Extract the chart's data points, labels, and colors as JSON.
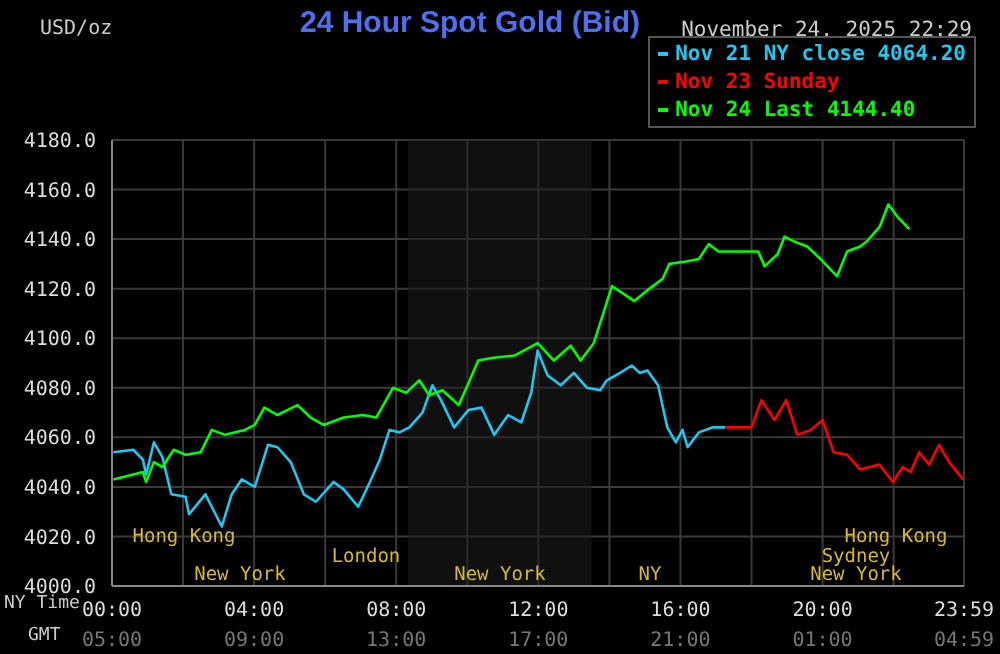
{
  "chart_data": {
    "type": "line",
    "title": "24 Hour Spot Gold (Bid)",
    "subtitle": "November 24, 2025 22:29",
    "ylabel": "USD/oz",
    "xlabel": "NY Time",
    "x2label": "GMT",
    "xlim": [
      0,
      23.98
    ],
    "xticks": [
      {
        "value": 0,
        "label": "00:00"
      },
      {
        "value": 2,
        "label": null
      },
      {
        "value": 4,
        "label": "04:00"
      },
      {
        "value": 6,
        "label": null
      },
      {
        "value": 8,
        "label": "08:00"
      },
      {
        "value": 10,
        "label": null
      },
      {
        "value": 12,
        "label": "12:00"
      },
      {
        "value": 14,
        "label": null
      },
      {
        "value": 16,
        "label": "16:00"
      },
      {
        "value": 18,
        "label": null
      },
      {
        "value": 20,
        "label": "20:00"
      },
      {
        "value": 22,
        "label": null
      },
      {
        "value": 23.98,
        "label": "23:59"
      }
    ],
    "x2lim": [
      "2025-11-24T05:00",
      "2025-11-25T04:59"
    ],
    "x2ticks": [
      {
        "value": "2025-11-24T05:00",
        "label": "05:00"
      },
      {
        "value": "2025-11-24T09:00",
        "label": "09:00"
      },
      {
        "value": "2025-11-24T13:00",
        "label": "13:00"
      },
      {
        "value": "2025-11-24T17:00",
        "label": "17:00"
      },
      {
        "value": "2025-11-24T21:00",
        "label": "21:00"
      },
      {
        "value": "2025-11-25T01:00",
        "label": "01:00"
      },
      {
        "value": "2025-11-25T04:59",
        "label": "04:59"
      }
    ],
    "ylim": [
      4000,
      4180
    ],
    "yticks": [
      {
        "value": 4000,
        "label": "4000.0"
      },
      {
        "value": 4020,
        "label": "4020.0"
      },
      {
        "value": 4040,
        "label": "4040.0"
      },
      {
        "value": 4060,
        "label": "4060.0"
      },
      {
        "value": 4080,
        "label": "4080.0"
      },
      {
        "value": 4100,
        "label": "4100.0"
      },
      {
        "value": 4120,
        "label": "4120.0"
      },
      {
        "value": 4140,
        "label": "4140.0"
      },
      {
        "value": 4160,
        "label": "4160.0"
      },
      {
        "value": 4180,
        "label": "4180.0"
      }
    ],
    "grid": true,
    "legend": "top right",
    "marker": "none",
    "line_style": "solid",
    "bands": [
      {
        "axis": "x",
        "from": 8.33,
        "to": 13.5,
        "color": "#1c1e1c"
      }
    ],
    "annotations": [
      "Hong Kong",
      "London",
      "New York",
      "New York",
      "NY",
      "Hong Kong",
      "Sydney",
      "New York"
    ],
    "series": [
      {
        "name": "Nov 21 NY close 4064.20",
        "color": "#1ec8f0",
        "x": [
          0.04,
          0.6,
          0.87,
          0.96,
          1.18,
          1.42,
          1.67,
          2.07,
          2.17,
          2.63,
          3.09,
          3.37,
          3.65,
          4.02,
          4.39,
          4.66,
          5.03,
          5.4,
          5.74,
          6.24,
          6.52,
          6.93,
          7.26,
          7.54,
          7.81,
          8.09,
          8.37,
          8.74,
          9.02,
          9.26,
          9.63,
          10.03,
          10.4,
          10.76,
          11.15,
          11.52,
          11.8,
          11.98,
          12.26,
          12.63,
          13.0,
          13.37,
          13.74,
          13.93,
          14.3,
          14.63,
          14.85,
          15.07,
          15.37,
          15.63,
          15.87,
          16.06,
          16.2,
          16.52,
          16.89,
          17.26
        ],
        "values": [
          4054,
          4055,
          4051,
          4045,
          4058,
          4052,
          4037,
          4036,
          4029,
          4037,
          4024,
          4037,
          4043,
          4040,
          4057,
          4056,
          4050,
          4037,
          4034,
          4042,
          4039,
          4032,
          4042,
          4051,
          4063,
          4062,
          4064,
          4070,
          4081,
          4075,
          4064,
          4071,
          4072,
          4061,
          4069,
          4066,
          4078,
          4095,
          4085,
          4081,
          4086,
          4080,
          4079,
          4083,
          4086,
          4089,
          4086,
          4087,
          4081,
          4064,
          4058,
          4063,
          4056,
          4062,
          4064,
          4064
        ]
      },
      {
        "name": "Nov 23 Sunday",
        "color": "#ff0000",
        "x": [
          17.26,
          18.0,
          18.28,
          18.65,
          18.98,
          19.29,
          19.67,
          20.0,
          20.31,
          20.69,
          21.06,
          21.6,
          21.98,
          22.26,
          22.48,
          22.72,
          23.0,
          23.28,
          23.56,
          23.96
        ],
        "values": [
          4064,
          4064,
          4075,
          4067,
          4075,
          4061,
          4063,
          4067,
          4054,
          4053,
          4047,
          4049,
          4042,
          4048,
          4046,
          4054,
          4049,
          4057,
          4050,
          4043
        ]
      },
      {
        "name": "Nov 24 Last 4144.40",
        "color": "#00ff00",
        "x": [
          0.04,
          0.6,
          0.87,
          0.96,
          1.18,
          1.42,
          1.74,
          2.07,
          2.5,
          2.81,
          3.18,
          3.74,
          4.02,
          4.29,
          4.66,
          5.22,
          5.59,
          5.96,
          6.52,
          7.07,
          7.44,
          7.91,
          8.28,
          8.65,
          8.93,
          9.3,
          9.76,
          10.04,
          10.31,
          10.68,
          11.33,
          11.98,
          12.44,
          12.91,
          13.19,
          13.56,
          13.83,
          14.07,
          14.39,
          14.7,
          15.04,
          15.5,
          15.69,
          16.15,
          16.52,
          16.8,
          17.07,
          18.19,
          18.37,
          18.74,
          18.93,
          19.2,
          19.57,
          19.94,
          20.41,
          20.69,
          21.06,
          21.24,
          21.61,
          21.85,
          22.11,
          22.44
        ],
        "values": [
          4043,
          4045,
          4046,
          4042,
          4050,
          4048,
          4055,
          4053,
          4054,
          4063,
          4061,
          4063,
          4065,
          4072,
          4069,
          4073,
          4068,
          4065,
          4068,
          4069,
          4068,
          4080,
          4078,
          4083,
          4077,
          4079,
          4073,
          4082,
          4091,
          4092,
          4093,
          4098,
          4091,
          4097,
          4091,
          4098,
          4110,
          4121,
          4118,
          4115,
          4119,
          4124,
          4130,
          4131,
          4132,
          4138,
          4135,
          4135,
          4129,
          4134,
          4141,
          4139,
          4137,
          4132,
          4125,
          4135,
          4137,
          4139,
          4145,
          4154,
          4149,
          4144
        ]
      }
    ]
  }
}
